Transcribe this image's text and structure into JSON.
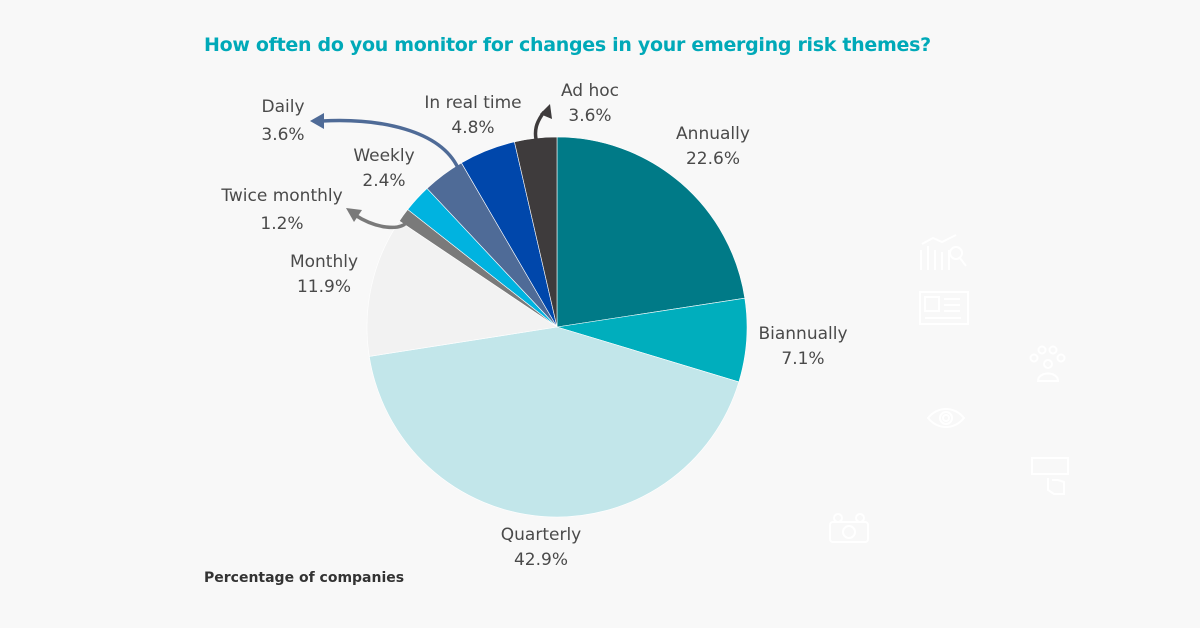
{
  "chart_data": {
    "type": "pie",
    "title": "How often do you monitor for changes in your emerging risk themes?",
    "footnote": "Percentage of companies",
    "start_angle": "12 o'clock",
    "direction": "clockwise",
    "slices": [
      {
        "label": "Annually",
        "value": 22.6,
        "display": "22.6%",
        "color": "#007a87"
      },
      {
        "label": "Biannually",
        "value": 7.1,
        "display": "7.1%",
        "color": "#00aebd"
      },
      {
        "label": "Quarterly",
        "value": 42.9,
        "display": "42.9%",
        "color": "#c2e6ea"
      },
      {
        "label": "Monthly",
        "value": 11.9,
        "display": "11.9%",
        "color": "#f2f2f2"
      },
      {
        "label": "Twice monthly",
        "value": 1.2,
        "display": "1.2%",
        "color": "#7a7a7a"
      },
      {
        "label": "Weekly",
        "value": 2.4,
        "display": "2.4%",
        "color": "#00b3e0"
      },
      {
        "label": "Daily",
        "value": 3.6,
        "display": "3.6%",
        "color": "#4f6b97"
      },
      {
        "label": "In real time",
        "value": 4.8,
        "display": "4.8%",
        "color": "#0047ab"
      },
      {
        "label": "Ad hoc",
        "value": 3.6,
        "display": "3.6%",
        "color": "#3e3b3c"
      }
    ]
  },
  "decorative_icons": [
    "chart-search-icon",
    "newspaper-icon",
    "team-icon",
    "eye-icon",
    "subscribe-click-icon",
    "money-icon"
  ]
}
